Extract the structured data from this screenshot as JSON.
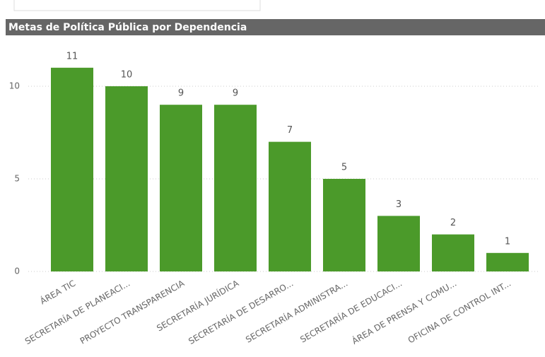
{
  "chart_data": {
    "type": "bar",
    "title": "Metas de Política Pública por Dependencia",
    "categories": [
      "ÁREA TIC",
      "SECRETARÍA DE PLANEACI...",
      "PROYECTO TRANSPARENCIA",
      "SECRETARÍA JURÍDICA",
      "SECRETARÍA DE DESARRO...",
      "SECRETARÍA ADMINISTRA...",
      "SECRETARÍA DE EDUCACI...",
      "ÁREA DE PRENSA Y COMU...",
      "OFICINA DE CONTROL INT..."
    ],
    "values": [
      11,
      10,
      9,
      9,
      7,
      5,
      3,
      2,
      1
    ],
    "color": "#4b9a2a",
    "ylim": [
      0,
      12
    ],
    "yticks": [
      0,
      5,
      10
    ],
    "grid": true
  }
}
